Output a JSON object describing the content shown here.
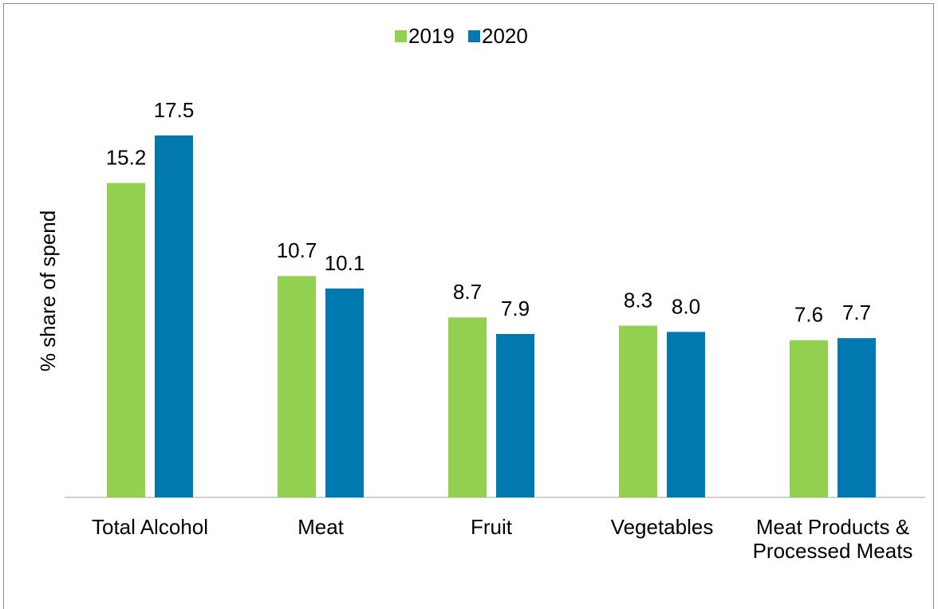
{
  "chart_data": {
    "type": "bar",
    "y_label": "% share of spend",
    "categories": [
      "Total Alcohol",
      "Meat",
      "Fruit",
      "Vegetables",
      "Meat Products & Processed Meats"
    ],
    "series": [
      {
        "name": "2019",
        "color": "#92d050",
        "values": [
          15.2,
          10.7,
          8.7,
          8.3,
          7.6
        ],
        "value_labels": [
          "15.2",
          "10.7",
          "8.7",
          "8.3",
          "7.6"
        ]
      },
      {
        "name": "2020",
        "color": "#0079b0",
        "values": [
          17.5,
          10.1,
          7.9,
          8.0,
          7.7
        ],
        "value_labels": [
          "17.5",
          "10.1",
          "7.9",
          "8.0",
          "7.7"
        ]
      }
    ],
    "ylim": [
      0,
      20
    ],
    "legend": "top"
  }
}
